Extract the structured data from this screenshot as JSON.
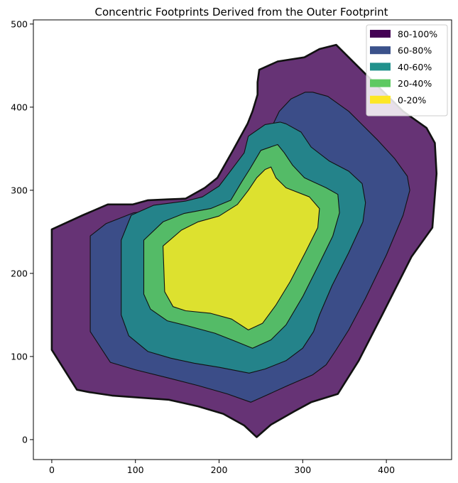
{
  "chart_data": {
    "type": "area",
    "title": "Concentric Footprints Derived from the Outer Footprint",
    "xlabel": "",
    "ylabel": "",
    "xlim": [
      -22,
      478
    ],
    "ylim": [
      -24,
      505
    ],
    "x_ticks": [
      0,
      100,
      200,
      300,
      400
    ],
    "y_ticks": [
      0,
      100,
      200,
      300,
      400,
      500
    ],
    "grid": false,
    "legend_position": "top-right",
    "series": [
      {
        "name": "80-100%",
        "color": "#440154",
        "fill_color": "#663375",
        "points": [
          [
            0,
            253
          ],
          [
            0,
            108
          ],
          [
            30,
            60
          ],
          [
            45,
            57
          ],
          [
            72,
            53
          ],
          [
            140,
            48
          ],
          [
            175,
            40
          ],
          [
            205,
            31
          ],
          [
            230,
            17
          ],
          [
            245,
            3
          ],
          [
            262,
            18
          ],
          [
            290,
            34
          ],
          [
            310,
            45
          ],
          [
            342,
            55
          ],
          [
            367,
            95
          ],
          [
            395,
            150
          ],
          [
            430,
            220
          ],
          [
            455,
            255
          ],
          [
            460,
            320
          ],
          [
            458,
            357
          ],
          [
            448,
            375
          ],
          [
            420,
            395
          ],
          [
            385,
            430
          ],
          [
            340,
            475
          ],
          [
            320,
            470
          ],
          [
            302,
            460
          ],
          [
            270,
            455
          ],
          [
            248,
            445
          ],
          [
            246,
            430
          ],
          [
            246,
            415
          ],
          [
            240,
            395
          ],
          [
            234,
            380
          ],
          [
            216,
            347
          ],
          [
            198,
            315
          ],
          [
            183,
            303
          ],
          [
            160,
            290
          ],
          [
            138,
            289
          ],
          [
            115,
            288
          ],
          [
            97,
            283
          ],
          [
            67,
            283
          ],
          [
            37,
            270
          ],
          [
            0,
            253
          ]
        ]
      },
      {
        "name": "60-80%",
        "color": "#3b528b",
        "fill_color": "#3b4d88",
        "points": [
          [
            46,
            245
          ],
          [
            46,
            130
          ],
          [
            70,
            93
          ],
          [
            100,
            84
          ],
          [
            140,
            74
          ],
          [
            175,
            65
          ],
          [
            210,
            55
          ],
          [
            238,
            45
          ],
          [
            258,
            54
          ],
          [
            282,
            65
          ],
          [
            312,
            78
          ],
          [
            328,
            90
          ],
          [
            340,
            108
          ],
          [
            355,
            132
          ],
          [
            375,
            170
          ],
          [
            400,
            222
          ],
          [
            420,
            270
          ],
          [
            428,
            300
          ],
          [
            425,
            317
          ],
          [
            410,
            338
          ],
          [
            390,
            360
          ],
          [
            355,
            395
          ],
          [
            330,
            413
          ],
          [
            312,
            418
          ],
          [
            303,
            418
          ],
          [
            286,
            410
          ],
          [
            272,
            395
          ],
          [
            260,
            370
          ],
          [
            250,
            345
          ],
          [
            232,
            325
          ],
          [
            215,
            305
          ],
          [
            200,
            290
          ],
          [
            180,
            281
          ],
          [
            158,
            278
          ],
          [
            138,
            276
          ],
          [
            98,
            273
          ],
          [
            65,
            260
          ],
          [
            46,
            245
          ]
        ]
      },
      {
        "name": "40-60%",
        "color": "#21918c",
        "fill_color": "#24838a",
        "points": [
          [
            83,
            240
          ],
          [
            83,
            150
          ],
          [
            92,
            125
          ],
          [
            115,
            106
          ],
          [
            142,
            98
          ],
          [
            170,
            92
          ],
          [
            200,
            87
          ],
          [
            236,
            80
          ],
          [
            255,
            85
          ],
          [
            280,
            95
          ],
          [
            300,
            110
          ],
          [
            313,
            130
          ],
          [
            320,
            150
          ],
          [
            335,
            185
          ],
          [
            355,
            225
          ],
          [
            372,
            262
          ],
          [
            375,
            285
          ],
          [
            371,
            308
          ],
          [
            355,
            323
          ],
          [
            332,
            335
          ],
          [
            310,
            352
          ],
          [
            298,
            370
          ],
          [
            280,
            380
          ],
          [
            273,
            382
          ],
          [
            255,
            379
          ],
          [
            235,
            365
          ],
          [
            230,
            345
          ],
          [
            212,
            321
          ],
          [
            200,
            305
          ],
          [
            180,
            292
          ],
          [
            160,
            287
          ],
          [
            122,
            282
          ],
          [
            95,
            270
          ],
          [
            83,
            240
          ]
        ]
      },
      {
        "name": "20-40%",
        "color": "#5ec962",
        "fill_color": "#54bb67",
        "points": [
          [
            110,
            240
          ],
          [
            110,
            175
          ],
          [
            118,
            157
          ],
          [
            138,
            143
          ],
          [
            162,
            137
          ],
          [
            195,
            128
          ],
          [
            218,
            119
          ],
          [
            240,
            110
          ],
          [
            262,
            120
          ],
          [
            280,
            138
          ],
          [
            300,
            172
          ],
          [
            318,
            208
          ],
          [
            336,
            245
          ],
          [
            344,
            273
          ],
          [
            342,
            295
          ],
          [
            328,
            303
          ],
          [
            302,
            315
          ],
          [
            288,
            330
          ],
          [
            278,
            345
          ],
          [
            270,
            355
          ],
          [
            250,
            348
          ],
          [
            237,
            326
          ],
          [
            227,
            310
          ],
          [
            214,
            288
          ],
          [
            190,
            278
          ],
          [
            158,
            272
          ],
          [
            133,
            262
          ],
          [
            110,
            240
          ]
        ]
      },
      {
        "name": "0-20%",
        "color": "#fde725",
        "fill_color": "#dde12f",
        "points": [
          [
            133,
            233
          ],
          [
            135,
            178
          ],
          [
            145,
            160
          ],
          [
            160,
            155
          ],
          [
            190,
            152
          ],
          [
            215,
            145
          ],
          [
            235,
            132
          ],
          [
            252,
            140
          ],
          [
            268,
            162
          ],
          [
            285,
            190
          ],
          [
            303,
            225
          ],
          [
            318,
            255
          ],
          [
            320,
            278
          ],
          [
            308,
            292
          ],
          [
            280,
            303
          ],
          [
            268,
            315
          ],
          [
            262,
            328
          ],
          [
            255,
            325
          ],
          [
            245,
            315
          ],
          [
            235,
            300
          ],
          [
            222,
            283
          ],
          [
            200,
            269
          ],
          [
            175,
            262
          ],
          [
            155,
            252
          ],
          [
            133,
            233
          ]
        ]
      }
    ]
  }
}
